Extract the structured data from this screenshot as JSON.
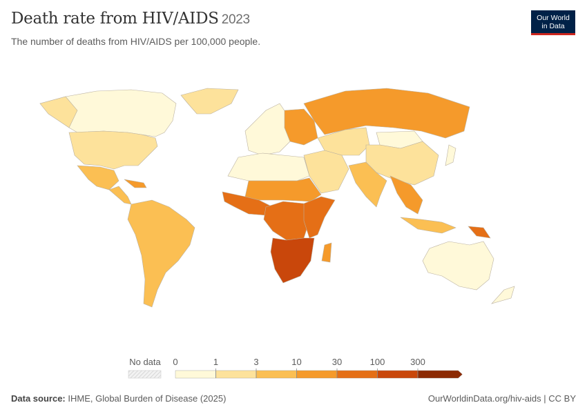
{
  "header": {
    "title": "Death rate from HIV/AIDS",
    "year": "2023",
    "subtitle": "The number of deaths from HIV/AIDS per 100,000 people."
  },
  "logo": {
    "line1": "Our World",
    "line2": "in Data"
  },
  "legend": {
    "no_data_label": "No data",
    "ticks": [
      "0",
      "1",
      "3",
      "10",
      "30",
      "100",
      "300"
    ],
    "colors": [
      "#fff9d9",
      "#fde29b",
      "#fbbf53",
      "#f59a2b",
      "#e56f16",
      "#c9470b",
      "#8c2a04"
    ],
    "no_data_color": "#e6e6e6"
  },
  "map_data": {
    "metric": "Deaths from HIV/AIDS per 100,000 people",
    "year": 2023,
    "regions": [
      {
        "name": "North America",
        "bin": "0-1"
      },
      {
        "name": "United States",
        "bin": "1-3"
      },
      {
        "name": "Mexico",
        "bin": "3-10"
      },
      {
        "name": "Caribbean",
        "bin": "10-30"
      },
      {
        "name": "Central America",
        "bin": "3-10"
      },
      {
        "name": "Greenland",
        "bin": "1-3"
      },
      {
        "name": "South America",
        "bin": "3-10"
      },
      {
        "name": "Western Europe",
        "bin": "0-1"
      },
      {
        "name": "Eastern Europe",
        "bin": "10-30"
      },
      {
        "name": "Russia",
        "bin": "10-30"
      },
      {
        "name": "Central Asia",
        "bin": "1-3"
      },
      {
        "name": "China",
        "bin": "1-3"
      },
      {
        "name": "Mongolia",
        "bin": "0-1"
      },
      {
        "name": "North Africa",
        "bin": "0-1"
      },
      {
        "name": "Middle East",
        "bin": "1-3"
      },
      {
        "name": "South Asia",
        "bin": "3-10"
      },
      {
        "name": "Southeast Asia",
        "bin": "10-30"
      },
      {
        "name": "Indonesia",
        "bin": "3-10"
      },
      {
        "name": "Papua New Guinea",
        "bin": "30-100"
      },
      {
        "name": "West Africa",
        "bin": "30-100"
      },
      {
        "name": "Sahel",
        "bin": "10-30"
      },
      {
        "name": "East Africa",
        "bin": "30-100"
      },
      {
        "name": "Central Africa",
        "bin": "30-100"
      },
      {
        "name": "Southern Africa",
        "bin": "100-300"
      },
      {
        "name": "Madagascar",
        "bin": "10-30"
      },
      {
        "name": "Japan",
        "bin": "0-1"
      },
      {
        "name": "Australia",
        "bin": "0-1"
      },
      {
        "name": "New Zealand",
        "bin": "0-1"
      }
    ]
  },
  "footer": {
    "source_label": "Data source:",
    "source_text": "IHME, Global Burden of Disease (2025)",
    "link": "OurWorldinData.org/hiv-aids | CC BY"
  }
}
